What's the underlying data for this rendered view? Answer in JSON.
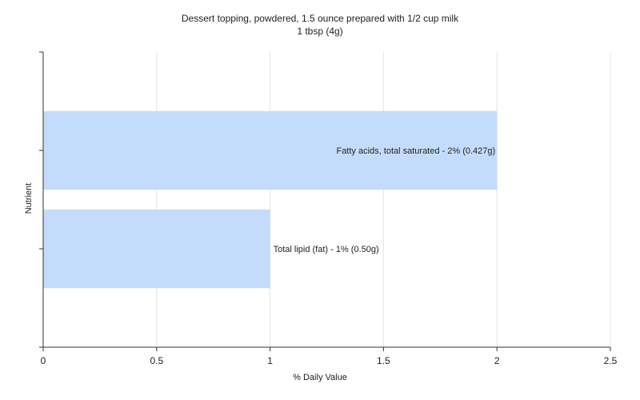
{
  "chart_data": {
    "type": "bar",
    "orientation": "horizontal",
    "title": "Dessert topping, powdered, 1.5 ounce prepared with 1/2 cup milk",
    "subtitle": "1 tbsp (4g)",
    "xlabel": "% Daily Value",
    "ylabel": "Nutrient",
    "xlim": [
      0,
      2.5
    ],
    "xticks": [
      "0",
      "0.5",
      "1",
      "1.5",
      "2",
      "2.5"
    ],
    "grid": true,
    "bar_color": "#c4dcfc",
    "categories": [
      "Fatty acids, total saturated",
      "Total lipid (fat)"
    ],
    "values": [
      2,
      1
    ],
    "labels": [
      "Fatty acids, total saturated - 2% (0.427g)",
      "Total lipid (fat) - 1% (0.50g)"
    ]
  }
}
